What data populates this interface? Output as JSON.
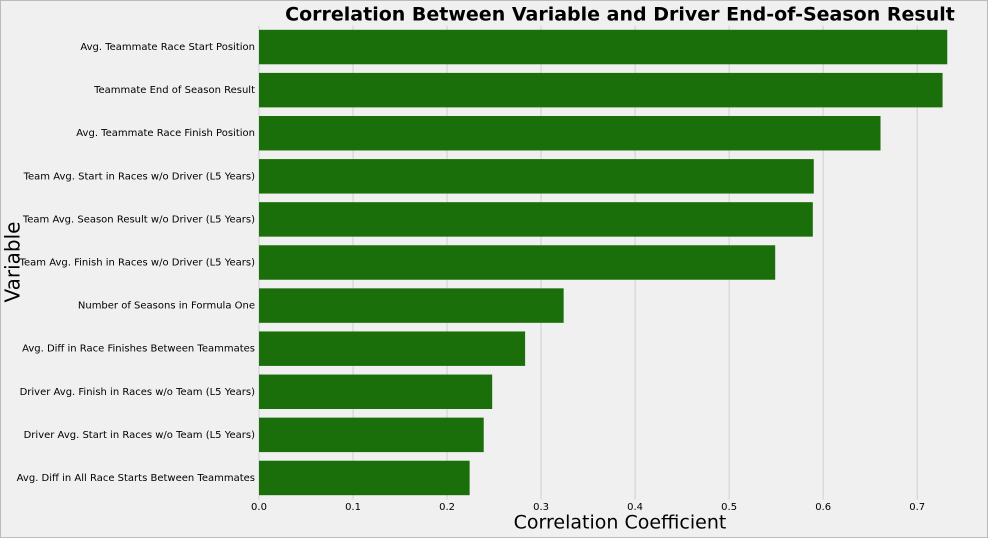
{
  "chart_data": {
    "type": "barh",
    "title": "Correlation Between Variable and Driver End-of-Season Result",
    "x_label": "Correlation Coefficient",
    "y_label": "Variable",
    "categories": [
      "Avg. Teammate Race Start Position",
      "Teammate End of Season Result",
      "Avg. Teammate Race Finish Position",
      "Team Avg. Start in Races w/o Driver (L5 Years)",
      "Team Avg. Season Result w/o Driver (L5 Years)",
      "Team Avg. Finish in Races w/o Driver (L5 Years)",
      "Number of Seasons in Formula One",
      "Avg. Diff in Race Finishes Between Teammates",
      "Driver Avg. Finish in Races w/o Team (L5 Years)",
      "Driver Avg. Start in Races w/o Team (L5 Years)",
      "Avg. Diff in All Race Starts Between Teammates"
    ],
    "values": [
      0.732,
      0.727,
      0.661,
      0.59,
      0.589,
      0.549,
      0.324,
      0.283,
      0.248,
      0.239,
      0.224
    ],
    "color": "#1b6f0a",
    "xlim": [
      0,
      0.77
    ],
    "xticks": [
      {
        "value": 0,
        "label": "0.0"
      },
      0.1,
      0.2,
      0.3,
      0.4,
      0.5,
      0.6,
      0.7
    ],
    "grid": true
  }
}
